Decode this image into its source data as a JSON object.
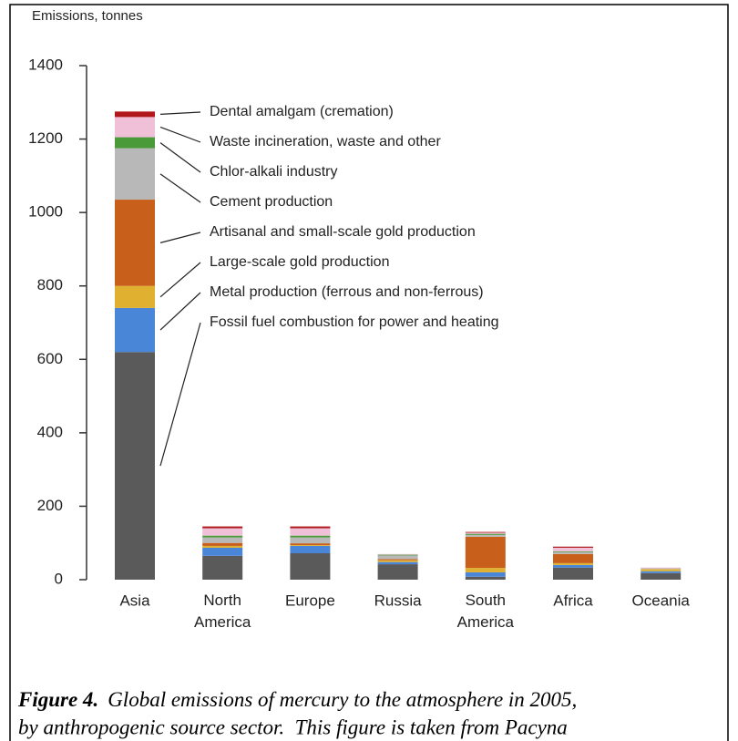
{
  "chart_data": {
    "type": "stacked_bar",
    "y_label": "Emissions, tonnes",
    "categories": [
      "Asia",
      "North America",
      "Europe",
      "Russia",
      "South America",
      "Africa",
      "Oceania"
    ],
    "series": [
      {
        "name": "Fossil fuel combustion for power and heating",
        "color": "#5a5a5a",
        "values": [
          620,
          65,
          72,
          42,
          8,
          33,
          18
        ]
      },
      {
        "name": "Metal production (ferrous and non-ferrous)",
        "color": "#4a86d8",
        "values": [
          120,
          22,
          20,
          6,
          12,
          7,
          5
        ]
      },
      {
        "name": "Large-scale gold production",
        "color": "#e0b030",
        "values": [
          60,
          5,
          2,
          5,
          12,
          5,
          6
        ]
      },
      {
        "name": "Artisanal and small-scale gold production",
        "color": "#c8601c",
        "values": [
          235,
          8,
          5,
          3,
          85,
          25,
          0
        ]
      },
      {
        "name": "Cement production",
        "color": "#b8b8b8",
        "values": [
          140,
          15,
          16,
          10,
          5,
          5,
          2
        ]
      },
      {
        "name": "Chlor-alkali industry",
        "color": "#4a9a3a",
        "values": [
          30,
          5,
          5,
          2,
          3,
          2,
          0
        ]
      },
      {
        "name": "Waste incineration, waste and other",
        "color": "#f0c0d8",
        "values": [
          55,
          20,
          20,
          2,
          3,
          10,
          2
        ]
      },
      {
        "name": "Dental amalgam (cremation)",
        "color": "#b0181c",
        "values": [
          15,
          5,
          5,
          0,
          2,
          3,
          0
        ]
      }
    ],
    "ylim": [
      0,
      1400
    ],
    "yticks": [
      0,
      200,
      400,
      600,
      800,
      1000,
      1200,
      1400
    ],
    "caption_label": "Figure 4.",
    "caption": [
      "Global emissions of mercury to the atmosphere in 2005,",
      "by anthropogenic source sector.  This figure is taken from Pacyna"
    ]
  }
}
